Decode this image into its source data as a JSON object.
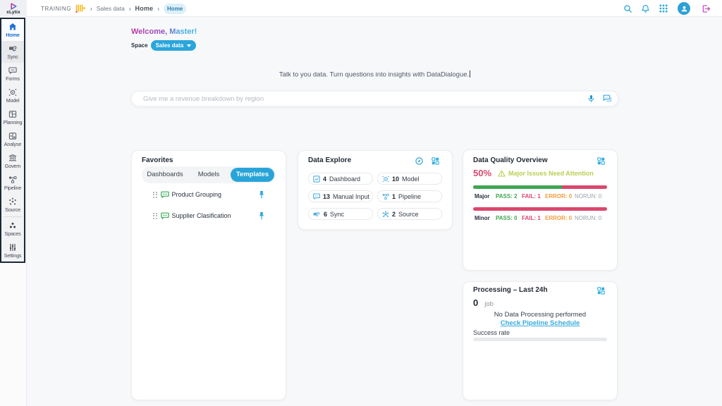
{
  "colors": {
    "accent_cyan": "#2aa6db",
    "active_blue": "#1d6fd4",
    "logout_pink": "#c44fc0",
    "quality_pink": "#da476e",
    "quality_green": "#41a452",
    "quality_orange": "#f49c3f",
    "warning_yellow_green": "#bccd52",
    "background": "#f7f8fa"
  },
  "topbar": {
    "logo_text": "xLytix",
    "breadcrumb": [
      {
        "label": "TRAINING"
      },
      {
        "label": "Sales data"
      },
      {
        "label": "Home"
      },
      {
        "label": "Home",
        "active": true
      }
    ]
  },
  "sidebar": {
    "items": [
      {
        "label": "Home",
        "active": true
      },
      {
        "label": "Sync"
      },
      {
        "label": "Forms"
      },
      {
        "label": "Model"
      },
      {
        "label": "Planning"
      },
      {
        "label": "Analyse"
      },
      {
        "label": "Govern"
      },
      {
        "label": "Pipeline"
      },
      {
        "label": "Source"
      },
      {
        "label": "Spaces"
      },
      {
        "label": "Settings"
      }
    ]
  },
  "main": {
    "welcome_prefix": "Welcome",
    "welcome_suffix": ", Master!",
    "space_label": "Space",
    "space_value": "Sales data",
    "tagline": "Talk to you data. Turn questions into insights with DataDialogue.",
    "search": {
      "placeholder": "Give me a revenue breakdown by region"
    }
  },
  "favorites": {
    "title": "Favorites",
    "tabs": [
      {
        "label": "Dashboards"
      },
      {
        "label": "Models"
      },
      {
        "label": "Templates",
        "active": true
      }
    ],
    "items": [
      {
        "label": "Product Grouping"
      },
      {
        "label": "Supplier Clasification"
      }
    ]
  },
  "explore": {
    "title": "Data Explore",
    "tiles": [
      {
        "count": "4",
        "label": "Dashboard"
      },
      {
        "count": "10",
        "label": "Model"
      },
      {
        "count": "13",
        "label": "Manual Input"
      },
      {
        "count": "1",
        "label": "Pipeline"
      },
      {
        "count": "6",
        "label": "Sync"
      },
      {
        "count": "2",
        "label": "Source"
      }
    ]
  },
  "quality": {
    "title": "Data Quality Overview",
    "score": "50%",
    "warning": "Major Issues Need Attention",
    "rows": [
      {
        "name": "Major",
        "pass": "PASS: 2",
        "fail": "FAIL: 1",
        "error": "ERROR: 0",
        "norun": "NORUN: 0",
        "green_pct": 66.5
      },
      {
        "name": "Minor",
        "pass": "PASS: 0",
        "fail": "FAIL: 1",
        "error": "ERROR: 0",
        "norun": "NORUN: 0",
        "green_pct": 0
      }
    ]
  },
  "processing": {
    "title": "Processing – Last 24h",
    "count": "0",
    "unit": "job",
    "empty_text": "No Data Processing performed",
    "link_text": "Check Pipeline Schedule",
    "success_label": "Success rate",
    "success_pct": 0
  }
}
